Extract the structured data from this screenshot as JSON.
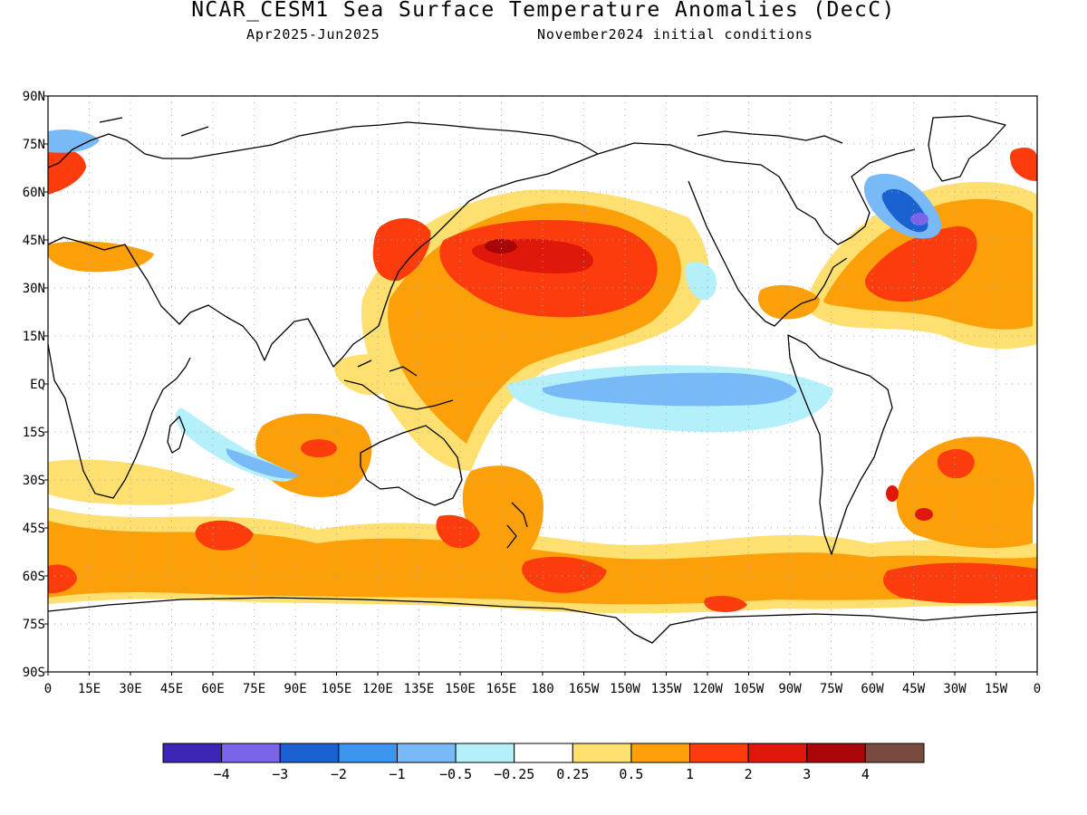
{
  "title": "NCAR_CESM1 Sea Surface Temperature Anomalies (DecC)",
  "subtitle_left": "Apr2025-Jun2025",
  "subtitle_right": "November2024 initial conditions",
  "lat_labels": [
    "90N",
    "75N",
    "60N",
    "45N",
    "30N",
    "15N",
    "EQ",
    "15S",
    "30S",
    "45S",
    "60S",
    "75S",
    "90S"
  ],
  "lon_labels": [
    "0",
    "15E",
    "30E",
    "45E",
    "60E",
    "75E",
    "90E",
    "105E",
    "120E",
    "135E",
    "150E",
    "165E",
    "180",
    "165W",
    "150W",
    "135W",
    "120W",
    "105W",
    "90W",
    "75W",
    "60W",
    "45W",
    "30W",
    "15W",
    "0"
  ],
  "colorbar": {
    "colors": [
      "#3c25b5",
      "#7c64e8",
      "#1a62d0",
      "#3c96f0",
      "#78baf8",
      "#b4f0fa",
      "#ffffff",
      "#fde070",
      "#fca00a",
      "#fc3c0c",
      "#e0180a",
      "#a80608",
      "#7a4a40"
    ],
    "labels": [
      "-4",
      "-3",
      "-2",
      "-1",
      "-0.5",
      "-0.25",
      "0.25",
      "0.5",
      "1",
      "2",
      "3",
      "4"
    ]
  },
  "anomaly_regions": [
    {
      "region": "North Pacific",
      "level": "2 to 4"
    },
    {
      "region": "Western Pacific",
      "level": "0.5 to 1"
    },
    {
      "region": "Equatorial Pacific",
      "level": "-1 to -0.25"
    },
    {
      "region": "Eastern Pacific",
      "level": "-0.5 to -0.25"
    },
    {
      "region": "North Atlantic",
      "level": "1 to 2"
    },
    {
      "region": "Labrador Sea",
      "level": "-3 to -1"
    },
    {
      "region": "Southern Ocean",
      "level": "0.5 to 2"
    },
    {
      "region": "Indian Ocean",
      "level": "-1 to 2"
    },
    {
      "region": "South Atlantic",
      "level": "1 to 2"
    }
  ]
}
